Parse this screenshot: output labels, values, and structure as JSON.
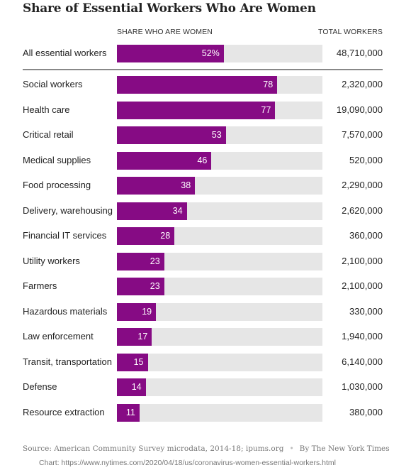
{
  "chart_data": {
    "type": "bar",
    "title": "Share of Essential Workers Who Are Women",
    "share_header": "SHARE WHO ARE WOMEN",
    "total_header": "TOTAL WORKERS",
    "xlim": [
      0,
      100
    ],
    "summary": {
      "category": "All essential workers",
      "value": 52,
      "label": "52%",
      "total": "48,710,000"
    },
    "categories": [
      "Social workers",
      "Health care",
      "Critical retail",
      "Medical supplies",
      "Food processing",
      "Delivery, warehousing",
      "Financial IT services",
      "Utility workers",
      "Farmers",
      "Hazardous materials",
      "Law enforcement",
      "Transit, transportation",
      "Defense",
      "Resource extraction"
    ],
    "values": [
      78,
      77,
      53,
      46,
      38,
      34,
      28,
      23,
      23,
      19,
      17,
      15,
      14,
      11
    ],
    "totals": [
      "2,320,000",
      "19,090,000",
      "7,570,000",
      "520,000",
      "2,290,000",
      "2,620,000",
      "360,000",
      "2,100,000",
      "2,100,000",
      "330,000",
      "1,940,000",
      "6,140,000",
      "1,030,000",
      "380,000"
    ],
    "bar_color": "#860b84",
    "track_color": "#e6e6e6"
  },
  "footer": {
    "source": "Source: American Community Survey microdata, 2014-18; ipums.org",
    "separator": "•",
    "byline": "By The New York Times",
    "chart_link": "Chart: https://www.nytimes.com/2020/04/18/us/coronavirus-women-essential-workers.html"
  }
}
